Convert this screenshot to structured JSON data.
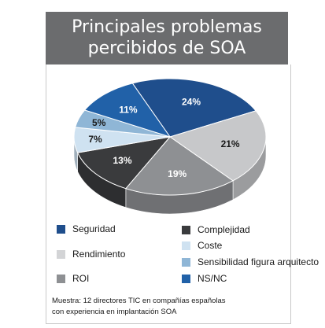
{
  "chart_data": {
    "type": "pie",
    "title_lines": [
      "Principales problemas",
      "percibidos de SOA"
    ],
    "slices": [
      {
        "name": "Seguridad",
        "value": 24,
        "label": "24%",
        "color": "#1f4e8c"
      },
      {
        "name": "Rendimiento",
        "value": 21,
        "label": "21%",
        "color": "#c7c8ca"
      },
      {
        "name": "ROI",
        "value": 19,
        "label": "19%",
        "color": "#8e9093"
      },
      {
        "name": "Complejidad",
        "value": 13,
        "label": "13%",
        "color": "#3a3b3d"
      },
      {
        "name": "Coste",
        "value": 7,
        "label": "7%",
        "color": "#cfe2f1"
      },
      {
        "name": "Sensibilidad figura arquitecto",
        "value": 5,
        "label": "5%",
        "color": "#8fb6d6"
      },
      {
        "name": "NS/NC",
        "value": 11,
        "label": "11%",
        "color": "#2161a8"
      }
    ],
    "legend": [
      {
        "label": "Seguridad",
        "color": "#1f4e8c"
      },
      {
        "label": "Rendimiento",
        "color": "#d3d4d6"
      },
      {
        "label": "ROI",
        "color": "#8e9093"
      },
      {
        "label": "Complejidad",
        "color": "#3a3b3d"
      },
      {
        "label": "Coste",
        "color": "#cfe2f1"
      },
      {
        "label": "Sensibilidad figura arquitecto",
        "color": "#8fb6d6"
      },
      {
        "label": "NS/NC",
        "color": "#2161a8"
      }
    ],
    "note_lines": [
      "Muestra: 12 directores TIC en compañías  españolas",
      "con experiencia en implantación SOA"
    ]
  }
}
